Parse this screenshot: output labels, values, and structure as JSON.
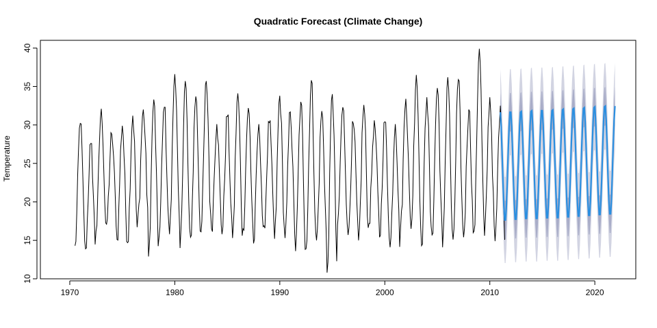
{
  "chart_data": {
    "type": "line",
    "title": "Quadratic Forecast (Climate Change)",
    "xlabel": "",
    "ylabel": "Temperature",
    "xlim": [
      1967.2,
      2023.9
    ],
    "ylim": [
      10,
      41
    ],
    "x_ticks": [
      1970,
      1980,
      1990,
      2000,
      2010,
      2020
    ],
    "y_ticks": [
      10,
      15,
      20,
      25,
      30,
      35,
      40
    ],
    "grid": false,
    "legend": "none",
    "colors": {
      "observed": "#000000",
      "forecast_mean": "#2b8fe0",
      "ci80": "#a9adc8",
      "ci95": "#d2d4e2"
    },
    "observed": {
      "start": 1970.5,
      "frequency": 12,
      "peaks": [
        30.2,
        27.6,
        32.1,
        28.8,
        29.9,
        31.2,
        32.0,
        33.3,
        32.3,
        36.6,
        35.7,
        33.7,
        35.7,
        30.1,
        31.1,
        34.1,
        32.2,
        30.1,
        30.3,
        33.8,
        31.7,
        33.0,
        35.8,
        31.8,
        34.0,
        32.3,
        30.2,
        32.6,
        30.6,
        30.4,
        30.1,
        33.4,
        36.5,
        33.6,
        34.8,
        36.2,
        35.9,
        32.0,
        39.9,
        33.6,
        32.5
      ],
      "troughs": [
        14.3,
        13.9,
        16.2,
        17.1,
        15.1,
        14.7,
        18.3,
        12.9,
        15.4,
        15.8,
        14.0,
        15.4,
        16.1,
        16.5,
        15.8,
        15.3,
        16.5,
        14.6,
        16.9,
        15.2,
        15.3,
        13.6,
        13.9,
        15.0,
        10.8,
        17.0,
        15.7,
        15.0,
        17.2,
        15.4,
        14.1,
        16.6,
        16.5,
        14.3,
        15.7,
        14.1,
        15.1,
        15.4,
        16.2,
        15.6,
        14.9
      ]
    },
    "forecast": {
      "start": 2011.0,
      "frequency": 12,
      "mean_peaks": [
        31.9,
        31.9,
        32.0,
        32.1,
        32.1,
        32.2,
        32.3,
        32.4,
        32.5,
        32.6,
        32.7
      ],
      "mean_troughs": [
        17.4,
        17.5,
        17.6,
        17.6,
        17.7,
        17.7,
        17.8,
        17.9,
        18.0,
        18.1,
        18.2
      ],
      "ci80_half_width": 2.5,
      "ci95_half_width": 5.6
    }
  }
}
